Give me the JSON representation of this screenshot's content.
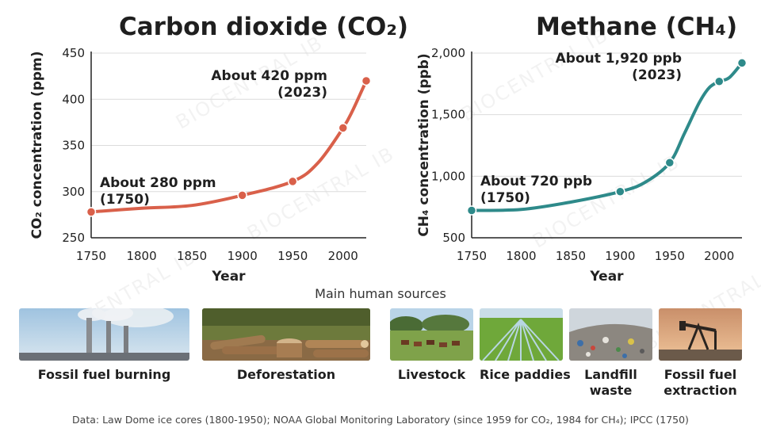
{
  "chart_data": [
    {
      "type": "line",
      "title": "Carbon dioxide (CO₂)",
      "xlabel": "Year",
      "ylabel": "CO₂ concentration (ppm)",
      "xlim": [
        1750,
        2023
      ],
      "ylim": [
        250,
        450
      ],
      "xticks": [
        1750,
        1800,
        1850,
        1900,
        1950,
        2000
      ],
      "xtick_labels": [
        "1750",
        "1800",
        "1850",
        "1900",
        "1950",
        "2000"
      ],
      "yticks": [
        250,
        300,
        350,
        400,
        450
      ],
      "ytick_labels": [
        "250",
        "300",
        "350",
        "400",
        "450"
      ],
      "grid": true,
      "color": "#d9604a",
      "series": [
        {
          "x": [
            1750,
            1800,
            1850,
            1900,
            1950,
            1975,
            2000,
            2010,
            2023
          ],
          "y": [
            278,
            282,
            285,
            296,
            311,
            331,
            369,
            389,
            420
          ]
        }
      ],
      "markers": {
        "x": [
          1750,
          1900,
          1950,
          2000,
          2023
        ],
        "y": [
          278,
          296,
          311,
          369,
          420
        ]
      },
      "annotations": [
        {
          "lines": [
            "About 280 ppm",
            "(1750)"
          ],
          "x": 1750,
          "y": 280
        },
        {
          "lines": [
            "About 420 ppm",
            "(2023)"
          ],
          "x": 2023,
          "y": 420
        }
      ]
    },
    {
      "type": "line",
      "title": "Methane (CH₄)",
      "xlabel": "Year",
      "ylabel": "CH₄ concentration (ppb)",
      "xlim": [
        1750,
        2023
      ],
      "ylim": [
        500,
        2000
      ],
      "xticks": [
        1750,
        1800,
        1850,
        1900,
        1950,
        2000
      ],
      "xtick_labels": [
        "1750",
        "1800",
        "1850",
        "1900",
        "1950",
        "2000"
      ],
      "yticks": [
        500,
        1000,
        1500,
        2000
      ],
      "ytick_labels": [
        "500",
        "1,000",
        "1,500",
        "2,000"
      ],
      "grid": true,
      "color": "#2e8a8a",
      "series": [
        {
          "x": [
            1750,
            1800,
            1850,
            1900,
            1925,
            1950,
            1965,
            1980,
            1990,
            2000,
            2010,
            2023
          ],
          "y": [
            722,
            730,
            790,
            875,
            950,
            1110,
            1350,
            1600,
            1720,
            1770,
            1800,
            1920
          ]
        }
      ],
      "markers": {
        "x": [
          1750,
          1900,
          1950,
          2000,
          2023
        ],
        "y": [
          722,
          875,
          1110,
          1770,
          1920
        ]
      },
      "annotations": [
        {
          "lines": [
            "About 720 ppb",
            "(1750)"
          ],
          "x": 1750,
          "y": 720
        },
        {
          "lines": [
            "About 1,920 ppb",
            "(2023)"
          ],
          "x": 2023,
          "y": 1920
        }
      ]
    }
  ],
  "sources": {
    "heading": "Main human sources",
    "items": [
      {
        "label": "Fossil fuel burning",
        "icon": "power-plant-image"
      },
      {
        "label": "Deforestation",
        "icon": "felled-logs-image"
      },
      {
        "label": "Livestock",
        "icon": "cattle-image"
      },
      {
        "label": "Rice paddies",
        "icon": "rice-field-image"
      },
      {
        "label": "Landfill waste",
        "icon": "landfill-image"
      },
      {
        "label": "Fossil fuel extraction",
        "icon": "oil-pump-image"
      }
    ]
  },
  "footnote": "Data: Law Dome ice cores (1800-1950); NOAA Global Monitoring Laboratory (since 1959 for CO₂, 1984 for CH₄); IPCC (1750)",
  "watermark": "BIOCENTRAL IB"
}
